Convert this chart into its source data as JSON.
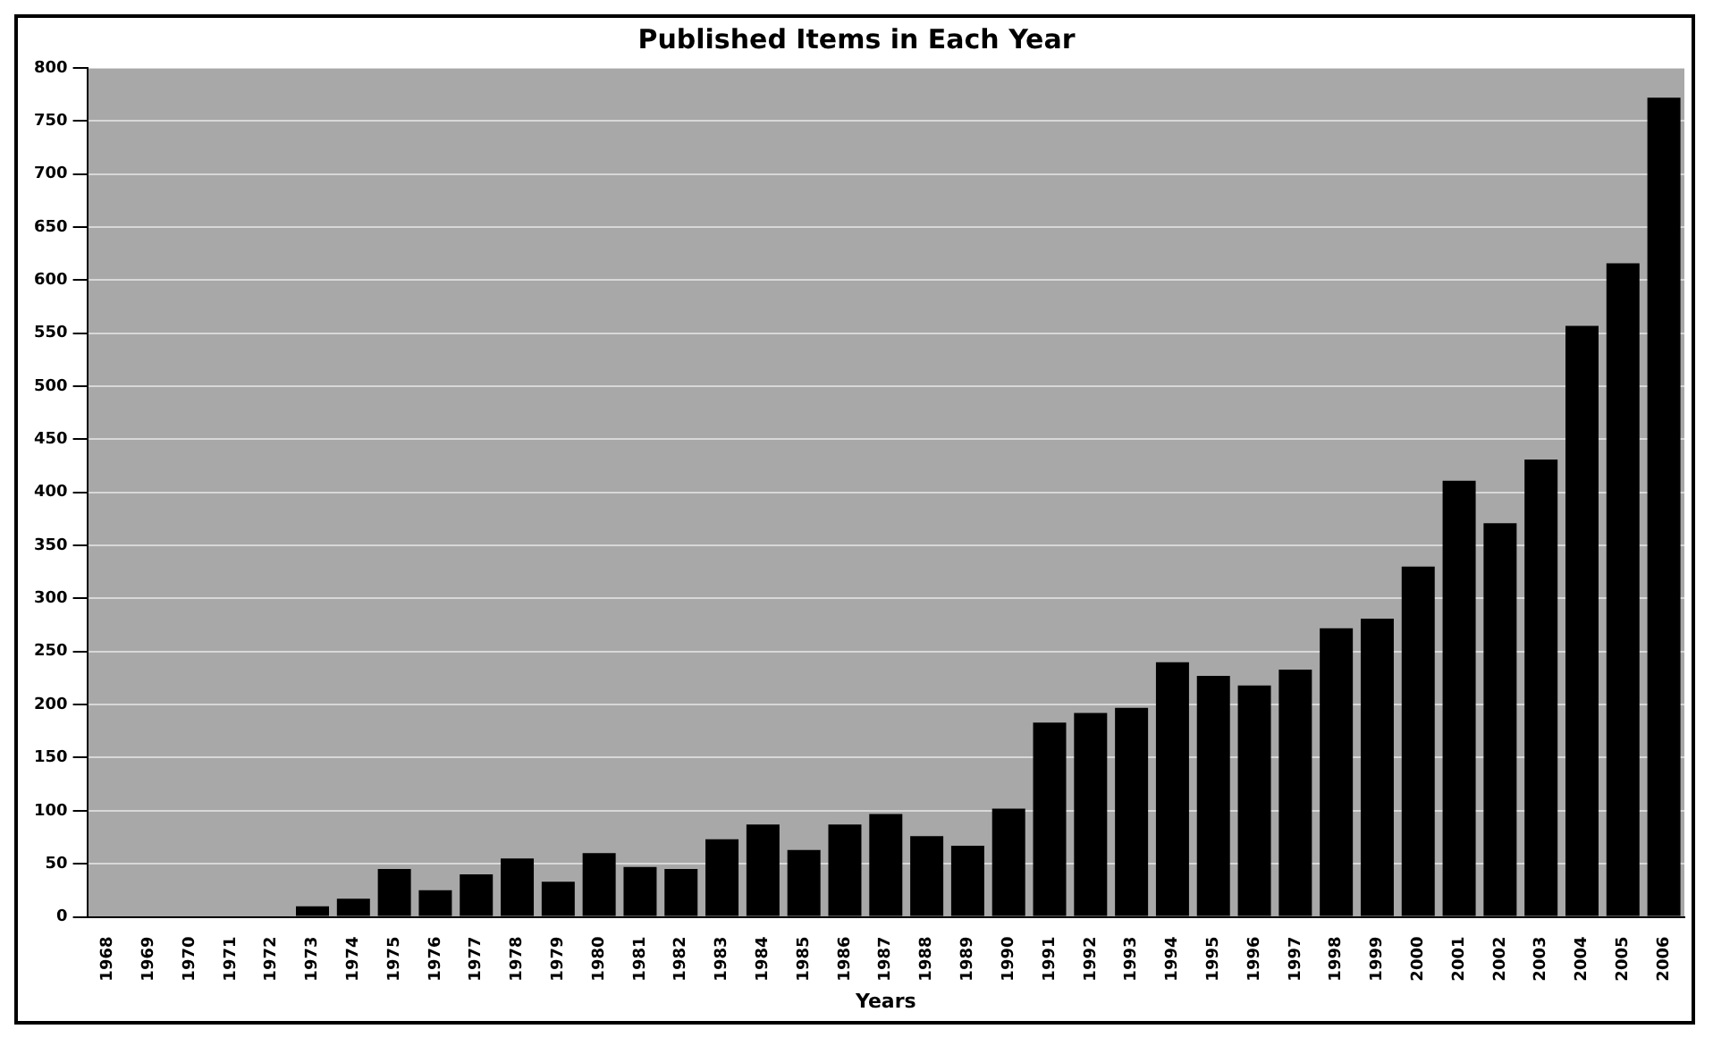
{
  "chart_data": {
    "type": "bar",
    "title": "Published Items in Each Year",
    "xlabel": "Years",
    "categories": [
      "1968",
      "1969",
      "1970",
      "1971",
      "1972",
      "1973",
      "1974",
      "1975",
      "1976",
      "1977",
      "1978",
      "1979",
      "1980",
      "1981",
      "1982",
      "1983",
      "1984",
      "1985",
      "1986",
      "1987",
      "1988",
      "1989",
      "1990",
      "1991",
      "1992",
      "1993",
      "1994",
      "1995",
      "1996",
      "1997",
      "1998",
      "1999",
      "2000",
      "2001",
      "2002",
      "2003",
      "2004",
      "2005",
      "2006"
    ],
    "values": [
      0,
      0,
      0,
      0,
      0,
      10,
      17,
      45,
      25,
      40,
      55,
      33,
      60,
      47,
      45,
      73,
      87,
      63,
      87,
      97,
      76,
      67,
      102,
      183,
      192,
      197,
      240,
      227,
      218,
      233,
      272,
      281,
      330,
      411,
      371,
      431,
      557,
      616,
      772
    ],
    "color": "#000000",
    "ylim": [
      0,
      800
    ],
    "yticks": [
      0,
      50,
      100,
      150,
      200,
      250,
      300,
      350,
      400,
      450,
      500,
      550,
      600,
      650,
      700,
      750,
      800
    ],
    "grid": "y",
    "legend": false
  }
}
